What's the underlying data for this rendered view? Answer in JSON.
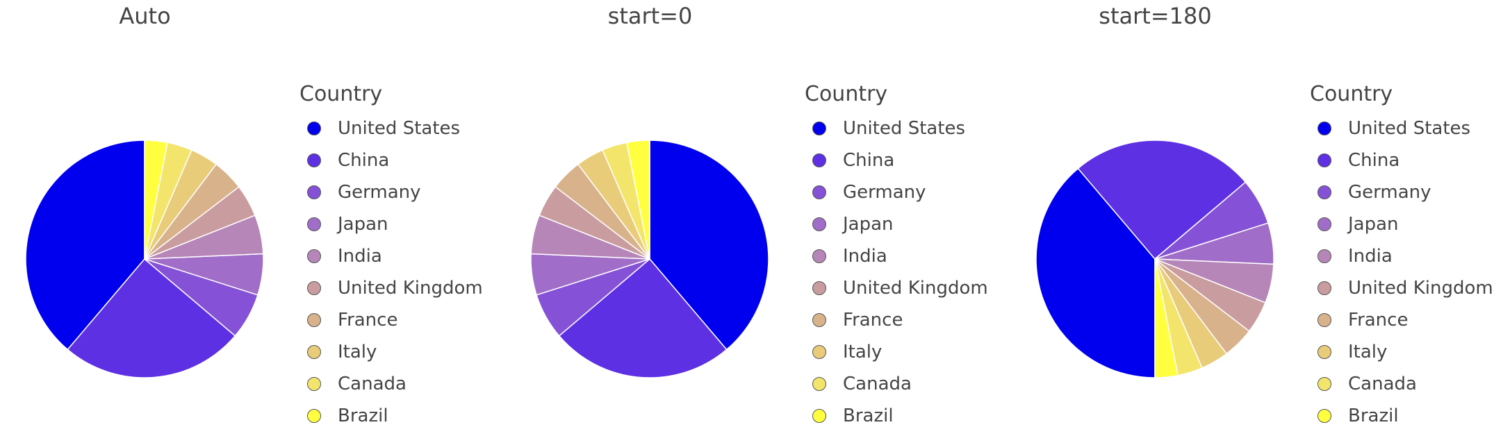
{
  "legend_title": "Country",
  "colors": [
    "#0000ee",
    "#5e30e3",
    "#8551d6",
    "#a06ec8",
    "#b686b9",
    "#c99d9f",
    "#d8b28b",
    "#e8cc79",
    "#f3e56c",
    "#ffff40"
  ],
  "chart_data": [
    {
      "type": "pie",
      "title": "Auto",
      "start_angle": "auto",
      "categories": [
        "United States",
        "China",
        "Germany",
        "Japan",
        "India",
        "United Kingdom",
        "France",
        "Italy",
        "Canada",
        "Brazil"
      ],
      "values": [
        38.8,
        25.0,
        6.3,
        5.6,
        5.3,
        4.4,
        4.3,
        3.8,
        3.4,
        3.1
      ],
      "legend_title": "Country",
      "legend_position": "right"
    },
    {
      "type": "pie",
      "title": "start=0",
      "start_angle": 0,
      "categories": [
        "United States",
        "China",
        "Germany",
        "Japan",
        "India",
        "United Kingdom",
        "France",
        "Italy",
        "Canada",
        "Brazil"
      ],
      "values": [
        38.8,
        25.0,
        6.3,
        5.6,
        5.3,
        4.4,
        4.3,
        3.8,
        3.4,
        3.1
      ],
      "legend_title": "Country",
      "legend_position": "right"
    },
    {
      "type": "pie",
      "title": "start=180",
      "start_angle": 180,
      "categories": [
        "United States",
        "China",
        "Germany",
        "Japan",
        "India",
        "United Kingdom",
        "France",
        "Italy",
        "Canada",
        "Brazil"
      ],
      "values": [
        38.8,
        25.0,
        6.3,
        5.6,
        5.3,
        4.4,
        4.3,
        3.8,
        3.4,
        3.1
      ],
      "legend_title": "Country",
      "legend_position": "right"
    }
  ]
}
